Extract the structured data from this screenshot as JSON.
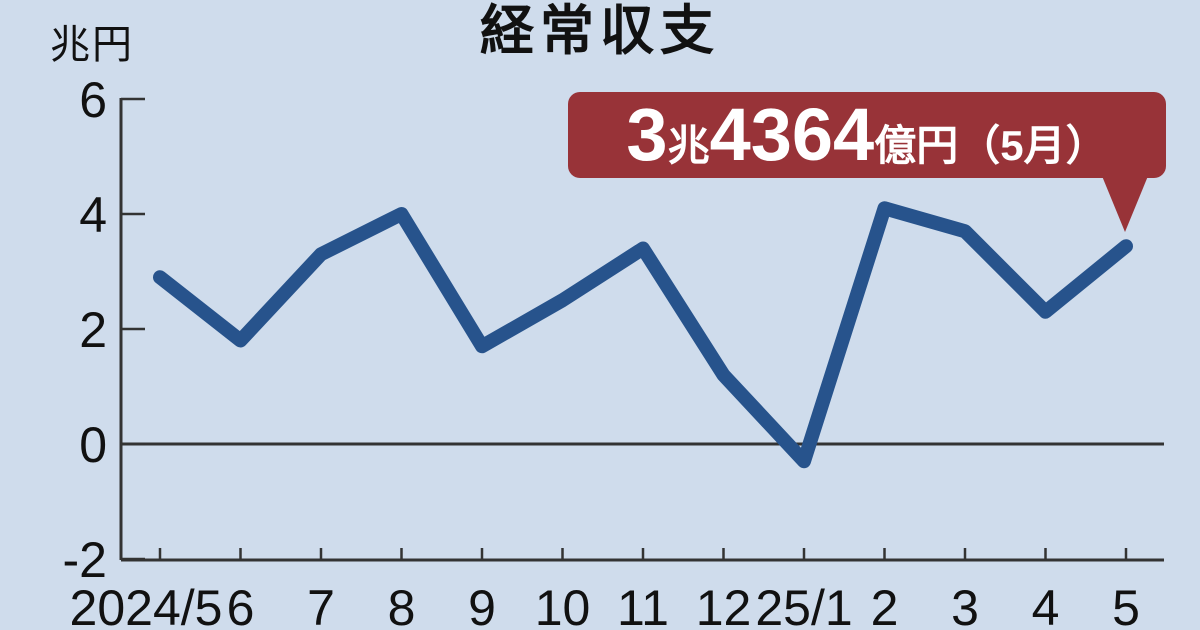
{
  "page": {
    "background_color": "#CFDCEC"
  },
  "title": "経常収支",
  "y_axis": {
    "unit_label": "兆円",
    "tick_labels": [
      "6",
      "4",
      "2",
      "0",
      "-2"
    ]
  },
  "x_axis": {
    "labels": [
      "2024/5",
      "6",
      "7",
      "8",
      "9",
      "10",
      "11",
      "12",
      "25/1",
      "2",
      "3",
      "4",
      "5"
    ]
  },
  "badge": {
    "text_full": "3兆4364億円（5月）",
    "value_int": "3",
    "unit_cho": "兆",
    "value_oku": "4364",
    "suffix": "億円（5月）",
    "background_color": "#983338",
    "text_color": "#ffffff"
  },
  "chart_data": {
    "type": "line",
    "title": "経常収支",
    "ylabel": "兆円",
    "ylim": [
      -2,
      6
    ],
    "yticks": [
      6,
      4,
      2,
      0,
      -2
    ],
    "categories": [
      "2024/5",
      "6",
      "7",
      "8",
      "9",
      "10",
      "11",
      "12",
      "25/1",
      "2",
      "3",
      "4",
      "5"
    ],
    "values": [
      2.9,
      1.8,
      3.3,
      4.0,
      1.7,
      2.5,
      3.4,
      1.2,
      -0.3,
      4.1,
      3.7,
      2.3,
      3.44
    ],
    "annotation": {
      "text": "3兆4364億円（5月）",
      "points_to_category": "5",
      "value": 3.4364
    },
    "line_color": "#27538C",
    "axis_color": "#333333",
    "background_color": "#CFDCEC",
    "grid": false,
    "legend": false,
    "zero_line": true
  }
}
